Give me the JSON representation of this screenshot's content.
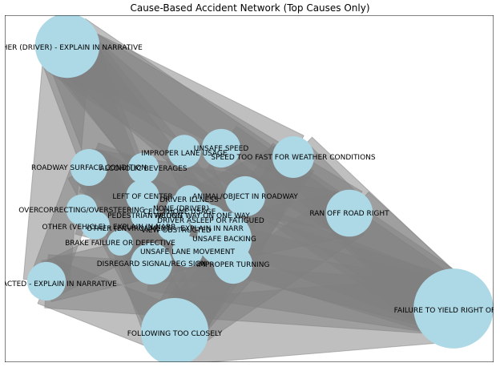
{
  "title": "Cause-Based Accident Network (Top Causes Only)",
  "colors": {
    "node": "#add8e6",
    "edge": "#808080",
    "frame": "#000000"
  },
  "nodes": [
    {
      "id": "other_driver",
      "label": "OTHER (DRIVER) - EXPLAIN IN NARRATIVE",
      "weight": 3.2
    },
    {
      "id": "improper_lane",
      "label": "IMPROPER LANE USAGE",
      "weight": 0.5
    },
    {
      "id": "unsafe_speed",
      "label": "UNSAFE SPEED",
      "weight": 0.8
    },
    {
      "id": "too_fast_weather",
      "label": "SPEED TOO FAST FOR WEATHER CONDITIONS",
      "weight": 1.0
    },
    {
      "id": "road_surface",
      "label": "ROADWAY SURFACE CONDITION",
      "weight": 0.7
    },
    {
      "id": "alcohol",
      "label": "ALCOHOLIC BEVERAGES",
      "weight": 0.4
    },
    {
      "id": "left_center",
      "label": "LEFT OF CENTER",
      "weight": 0.5
    },
    {
      "id": "driver_illness",
      "label": "DRIVER ILLNESS",
      "weight": 0.3
    },
    {
      "id": "animal",
      "label": "ANIMAL/OBJECT IN ROADWAY",
      "weight": 0.9
    },
    {
      "id": "none",
      "label": "NONE (DRIVER)",
      "weight": 0.3
    },
    {
      "id": "overcorrecting",
      "label": "OVERCORRECTING/OVERSTEERING",
      "weight": 0.4
    },
    {
      "id": "cell_phone",
      "label": "CELL PHONE USAGE",
      "weight": 0.3
    },
    {
      "id": "pedestrian",
      "label": "PEDESTRIAN ACTION",
      "weight": 0.3
    },
    {
      "id": "wrong_way",
      "label": "WRONG WAY ON ONE WAY",
      "weight": 0.3
    },
    {
      "id": "asleep",
      "label": "DRIVER ASLEEP OR FATIGUED",
      "weight": 0.4
    },
    {
      "id": "other_vehicle",
      "label": "OTHER (VEHICLE) - EXPLAIN IN NARR",
      "weight": 0.3
    },
    {
      "id": "other_environment",
      "label": "OTHER (ENVIRONMENT) - EXPLAIN IN NARR",
      "weight": 0.3
    },
    {
      "id": "view_obstructed",
      "label": "VIEW OBSTRUCTED",
      "weight": 0.3
    },
    {
      "id": "unsafe_backing",
      "label": "UNSAFE BACKING",
      "weight": 2.1
    },
    {
      "id": "brake_failure",
      "label": "BRAKE FAILURE OR DEFECTIVE",
      "weight": 0.2
    },
    {
      "id": "unsafe_lane_move",
      "label": "UNSAFE LANE MOVEMENT",
      "weight": 0.4
    },
    {
      "id": "disregard_signal",
      "label": "DISREGARD SIGNAL/REG SIGN",
      "weight": 1.0
    },
    {
      "id": "improper_turning",
      "label": "IMPROPER TURNING",
      "weight": 0.8
    },
    {
      "id": "ran_off_road",
      "label": "RAN OFF ROAD RIGHT",
      "weight": 1.4
    },
    {
      "id": "distracted",
      "label": "DISTRACTED - EXPLAIN IN NARRATIVE",
      "weight": 0.8
    },
    {
      "id": "failure_yield",
      "label": "FAILURE TO YIELD RIGHT OF WAY",
      "weight": 5.4
    },
    {
      "id": "following_close",
      "label": "FOLLOWING TOO CLOSELY",
      "weight": 3.6
    }
  ],
  "edges": [
    [
      "other_driver",
      "failure_yield"
    ],
    [
      "other_driver",
      "following_close"
    ],
    [
      "other_driver",
      "too_fast_weather"
    ],
    [
      "other_driver",
      "ran_off_road"
    ],
    [
      "other_driver",
      "unsafe_backing"
    ],
    [
      "other_driver",
      "distracted"
    ],
    [
      "other_driver",
      "disregard_signal"
    ],
    [
      "other_driver",
      "improper_turning"
    ],
    [
      "other_driver",
      "animal"
    ],
    [
      "failure_yield",
      "following_close"
    ],
    [
      "failure_yield",
      "distracted"
    ],
    [
      "failure_yield",
      "road_surface"
    ],
    [
      "failure_yield",
      "too_fast_weather"
    ],
    [
      "failure_yield",
      "ran_off_road"
    ],
    [
      "failure_yield",
      "unsafe_backing"
    ],
    [
      "failure_yield",
      "disregard_signal"
    ],
    [
      "failure_yield",
      "overcorrecting"
    ],
    [
      "failure_yield",
      "unsafe_speed"
    ],
    [
      "following_close",
      "distracted"
    ],
    [
      "following_close",
      "ran_off_road"
    ],
    [
      "following_close",
      "too_fast_weather"
    ],
    [
      "following_close",
      "unsafe_backing"
    ],
    [
      "following_close",
      "road_surface"
    ],
    [
      "following_close",
      "improper_turning"
    ],
    [
      "distracted",
      "road_surface"
    ],
    [
      "distracted",
      "too_fast_weather"
    ],
    [
      "distracted",
      "unsafe_backing"
    ],
    [
      "ran_off_road",
      "unsafe_backing"
    ],
    [
      "ran_off_road",
      "too_fast_weather"
    ],
    [
      "ran_off_road",
      "road_surface"
    ],
    [
      "unsafe_backing",
      "road_surface"
    ],
    [
      "unsafe_backing",
      "improper_lane"
    ],
    [
      "unsafe_backing",
      "animal"
    ],
    [
      "disregard_signal",
      "improper_turning"
    ],
    [
      "disregard_signal",
      "road_surface"
    ],
    [
      "improper_turning",
      "too_fast_weather"
    ]
  ]
}
